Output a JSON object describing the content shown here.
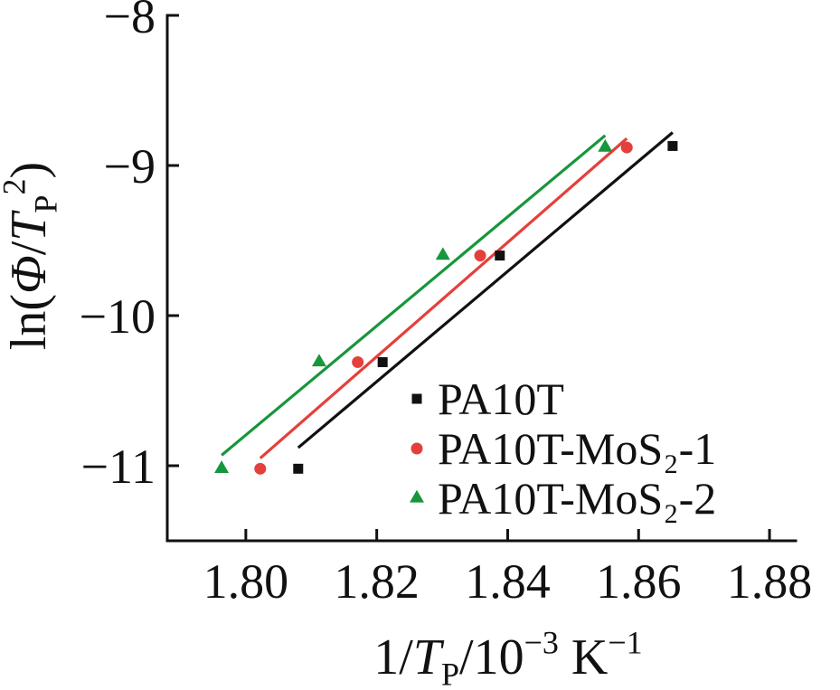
{
  "chart_data": {
    "type": "scatter",
    "xlabel": [
      {
        "t": "1/"
      },
      {
        "t": "T",
        "i": true
      },
      {
        "t": "P",
        "sub": true
      },
      {
        "t": "/10"
      },
      {
        "t": "−3",
        "sup": true
      },
      {
        "t": " K"
      },
      {
        "t": "−1",
        "sup": true
      }
    ],
    "ylabel": [
      {
        "t": "ln("
      },
      {
        "t": "Φ",
        "i": true
      },
      {
        "t": "/"
      },
      {
        "t": "T",
        "i": true
      },
      {
        "t": "P",
        "sub": true
      },
      {
        "t": "2",
        "sup": true
      },
      {
        "t": ")"
      }
    ],
    "xlim": [
      1.788,
      1.884
    ],
    "ylim": [
      -11.5,
      -8
    ],
    "xticks": [
      1.8,
      1.82,
      1.84,
      1.86,
      1.88
    ],
    "xtick_labels": [
      "1.80",
      "1.82",
      "1.84",
      "1.86",
      "1.88"
    ],
    "yticks": [
      -8,
      -9,
      -10,
      -11
    ],
    "ytick_labels": [
      "−8",
      "−9",
      "−10",
      "−11"
    ],
    "grid": false,
    "legend": {
      "position": "lower-right"
    },
    "series": [
      {
        "name": "PA10T",
        "marker": "square",
        "color": "#111111",
        "x": [
          1.808,
          1.8209,
          1.8388,
          1.8652
        ],
        "y": [
          -11.02,
          -10.31,
          -9.6,
          -8.87
        ],
        "fit": {
          "x": [
            1.808,
            1.8652
          ],
          "y": [
            -10.88,
            -8.78
          ]
        }
      },
      {
        "name": "PA10T-MoS₂-1",
        "marker": "circle",
        "color": "#e4403b",
        "x": [
          1.8022,
          1.8171,
          1.8358,
          1.8582
        ],
        "y": [
          -11.02,
          -10.31,
          -9.6,
          -8.88
        ],
        "fit": {
          "x": [
            1.8022,
            1.8582
          ],
          "y": [
            -10.95,
            -8.82
          ]
        }
      },
      {
        "name": "PA10T-MoS₂-2",
        "marker": "triangle",
        "color": "#17963c",
        "x": [
          1.7963,
          1.8112,
          1.8301,
          1.8549
        ],
        "y": [
          -11.02,
          -10.31,
          -9.6,
          -8.88
        ],
        "fit": {
          "x": [
            1.7963,
            1.8549
          ],
          "y": [
            -10.93,
            -8.8
          ]
        }
      }
    ]
  }
}
